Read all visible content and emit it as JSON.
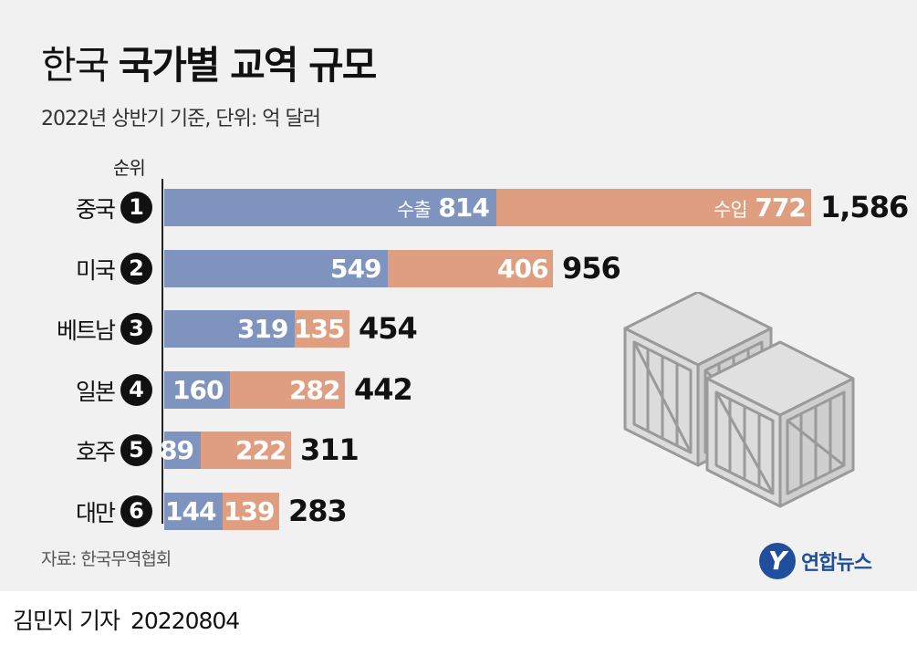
{
  "title": {
    "light": "한국",
    "bold": "국가별 교역 규모"
  },
  "subtitle": "2022년 상반기 기준, 단위: 억 달러",
  "rank_header": "순위",
  "source": "자료: 한국무역협회",
  "logo": {
    "text": "연합뉴스",
    "mark": "Y"
  },
  "byline": {
    "author": "김민지 기자",
    "date": "20220804"
  },
  "colors": {
    "export": "#7f93bf",
    "import": "#e09e80",
    "background": "#f1f1f1"
  },
  "icons": [
    "wooden-crate-icon",
    "wooden-crate-icon"
  ],
  "chart_data": {
    "type": "bar",
    "orientation": "horizontal",
    "stacked": true,
    "categories": [
      "중국",
      "미국",
      "베트남",
      "일본",
      "호주",
      "대만"
    ],
    "ranks": [
      "1",
      "2",
      "3",
      "4",
      "5",
      "6"
    ],
    "series": [
      {
        "name": "수출",
        "values": [
          814,
          549,
          319,
          160,
          89,
          144
        ]
      },
      {
        "name": "수입",
        "values": [
          772,
          406,
          135,
          282,
          222,
          139
        ]
      }
    ],
    "totals": [
      "1,586",
      "956",
      "454",
      "442",
      "311",
      "283"
    ]
  }
}
